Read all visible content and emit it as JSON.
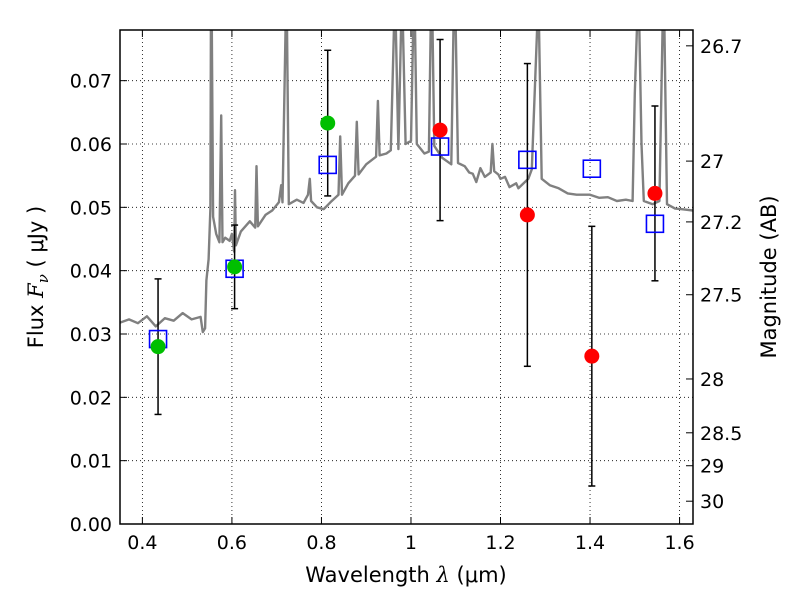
{
  "chart_data": {
    "type": "scatter",
    "title": "",
    "xlabel": "Wavelength",
    "xlabel_symbol": "λ",
    "xlabel_unit": "(μm)",
    "ylabel": "Flux",
    "ylabel_symbol": "F",
    "ylabel_subscript": "ν",
    "ylabel_unit": "( μJy )",
    "y2label": "Magnitude (AB)",
    "xlim": [
      0.35,
      1.63
    ],
    "ylim": [
      0.0,
      0.078
    ],
    "grid": true,
    "grid_style": "dotted",
    "legend": "none",
    "x_ticks": [
      0.4,
      0.6,
      0.8,
      1.0,
      1.2,
      1.4,
      1.6
    ],
    "x_tick_labels": [
      "0.4",
      "0.6",
      "0.8",
      "1",
      "1.2",
      "1.4",
      "1.6"
    ],
    "y_ticks": [
      0.0,
      0.01,
      0.02,
      0.03,
      0.04,
      0.05,
      0.06,
      0.07
    ],
    "y_tick_labels": [
      "0.00",
      "0.01",
      "0.02",
      "0.03",
      "0.04",
      "0.05",
      "0.06",
      "0.07"
    ],
    "y2_ticks": [
      {
        "label": "26.7",
        "flux": 0.0755
      },
      {
        "label": "27",
        "flux": 0.0573
      },
      {
        "label": "27.2",
        "flux": 0.0477
      },
      {
        "label": "27.5",
        "flux": 0.0362
      },
      {
        "label": "28",
        "flux": 0.0229
      },
      {
        "label": "28.5",
        "flux": 0.0144
      },
      {
        "label": "29",
        "flux": 0.0092
      },
      {
        "label": "30",
        "flux": 0.0036
      }
    ],
    "series": [
      {
        "kind": "model_spectrum_line",
        "color": "#808080",
        "points": [
          [
            0.35,
            0.0318
          ],
          [
            0.37,
            0.0323
          ],
          [
            0.39,
            0.0317
          ],
          [
            0.41,
            0.0328
          ],
          [
            0.43,
            0.0312
          ],
          [
            0.45,
            0.0325
          ],
          [
            0.47,
            0.0321
          ],
          [
            0.49,
            0.0333
          ],
          [
            0.51,
            0.0323
          ],
          [
            0.53,
            0.0327
          ],
          [
            0.535,
            0.0303
          ],
          [
            0.54,
            0.0309
          ],
          [
            0.543,
            0.0385
          ],
          [
            0.548,
            0.0418
          ],
          [
            0.552,
            0.0498
          ],
          [
            0.553,
            0.0785
          ],
          [
            0.555,
            0.0785
          ],
          [
            0.558,
            0.0485
          ],
          [
            0.565,
            0.0458
          ],
          [
            0.572,
            0.0445
          ],
          [
            0.576,
            0.0645
          ],
          [
            0.579,
            0.0445
          ],
          [
            0.585,
            0.0452
          ],
          [
            0.595,
            0.0447
          ],
          [
            0.6,
            0.0458
          ],
          [
            0.605,
            0.043
          ],
          [
            0.607,
            0.0527
          ],
          [
            0.609,
            0.044
          ],
          [
            0.62,
            0.0462
          ],
          [
            0.64,
            0.0478
          ],
          [
            0.652,
            0.0468
          ],
          [
            0.655,
            0.0565
          ],
          [
            0.658,
            0.047
          ],
          [
            0.675,
            0.0488
          ],
          [
            0.69,
            0.0495
          ],
          [
            0.705,
            0.0508
          ],
          [
            0.71,
            0.0535
          ],
          [
            0.713,
            0.0508
          ],
          [
            0.72,
            0.0785
          ],
          [
            0.723,
            0.0785
          ],
          [
            0.727,
            0.0505
          ],
          [
            0.745,
            0.0512
          ],
          [
            0.76,
            0.0507
          ],
          [
            0.77,
            0.052
          ],
          [
            0.774,
            0.0545
          ],
          [
            0.777,
            0.051
          ],
          [
            0.79,
            0.05
          ],
          [
            0.805,
            0.0497
          ],
          [
            0.82,
            0.0508
          ],
          [
            0.838,
            0.052
          ],
          [
            0.842,
            0.0612
          ],
          [
            0.846,
            0.052
          ],
          [
            0.86,
            0.0538
          ],
          [
            0.875,
            0.055
          ],
          [
            0.879,
            0.0635
          ],
          [
            0.883,
            0.0552
          ],
          [
            0.9,
            0.0568
          ],
          [
            0.922,
            0.058
          ],
          [
            0.926,
            0.0668
          ],
          [
            0.93,
            0.0582
          ],
          [
            0.945,
            0.0585
          ],
          [
            0.955,
            0.059
          ],
          [
            0.962,
            0.0785
          ],
          [
            0.966,
            0.0785
          ],
          [
            0.972,
            0.0592
          ],
          [
            0.978,
            0.0785
          ],
          [
            0.982,
            0.0785
          ],
          [
            0.988,
            0.06
          ],
          [
            1.0,
            0.0605
          ],
          [
            1.005,
            0.0785
          ],
          [
            1.009,
            0.0785
          ],
          [
            1.013,
            0.06
          ],
          [
            1.03,
            0.0585
          ],
          [
            1.04,
            0.0588
          ],
          [
            1.044,
            0.0785
          ],
          [
            1.048,
            0.0785
          ],
          [
            1.052,
            0.0597
          ],
          [
            1.07,
            0.0578
          ],
          [
            1.09,
            0.0568
          ],
          [
            1.095,
            0.0785
          ],
          [
            1.1,
            0.0785
          ],
          [
            1.105,
            0.057
          ],
          [
            1.12,
            0.0565
          ],
          [
            1.13,
            0.0555
          ],
          [
            1.138,
            0.0553
          ],
          [
            1.146,
            0.054
          ],
          [
            1.155,
            0.0562
          ],
          [
            1.165,
            0.0548
          ],
          [
            1.178,
            0.0555
          ],
          [
            1.182,
            0.06
          ],
          [
            1.186,
            0.0557
          ],
          [
            1.195,
            0.0552
          ],
          [
            1.2,
            0.0545
          ],
          [
            1.21,
            0.0548
          ],
          [
            1.22,
            0.0532
          ],
          [
            1.235,
            0.0538
          ],
          [
            1.24,
            0.053
          ],
          [
            1.262,
            0.0545
          ],
          [
            1.27,
            0.056
          ],
          [
            1.282,
            0.0785
          ],
          [
            1.286,
            0.0785
          ],
          [
            1.292,
            0.0545
          ],
          [
            1.31,
            0.0535
          ],
          [
            1.33,
            0.053
          ],
          [
            1.35,
            0.0522
          ],
          [
            1.37,
            0.052
          ],
          [
            1.4,
            0.052
          ],
          [
            1.42,
            0.0515
          ],
          [
            1.44,
            0.0516
          ],
          [
            1.46,
            0.051
          ],
          [
            1.48,
            0.0512
          ],
          [
            1.495,
            0.051
          ],
          [
            1.5,
            0.068
          ],
          [
            1.505,
            0.0785
          ],
          [
            1.51,
            0.0785
          ],
          [
            1.515,
            0.06
          ],
          [
            1.52,
            0.051
          ],
          [
            1.54,
            0.0505
          ],
          [
            1.555,
            0.051
          ],
          [
            1.562,
            0.0785
          ],
          [
            1.566,
            0.0785
          ],
          [
            1.572,
            0.0505
          ],
          [
            1.59,
            0.0498
          ],
          [
            1.605,
            0.0497
          ],
          [
            1.63,
            0.0495
          ]
        ]
      },
      {
        "kind": "observed_with_errorbars",
        "marker": "circle",
        "points": [
          {
            "x": 0.435,
            "y": 0.028,
            "err": 0.0107,
            "color": "#00bf00"
          },
          {
            "x": 0.606,
            "y": 0.0406,
            "err": 0.0066,
            "color": "#00bf00"
          },
          {
            "x": 0.814,
            "y": 0.0633,
            "err": 0.0115,
            "color": "#00bf00"
          },
          {
            "x": 1.065,
            "y": 0.0622,
            "err": 0.0143,
            "color": "#ff0000"
          },
          {
            "x": 1.26,
            "y": 0.0488,
            "err": 0.0239,
            "color": "#ff0000"
          },
          {
            "x": 1.404,
            "y": 0.0265,
            "err": 0.0205,
            "color": "#ff0000"
          },
          {
            "x": 1.545,
            "y": 0.0522,
            "err": 0.0138,
            "color": "#ff0000"
          }
        ]
      },
      {
        "kind": "model_photometry",
        "marker": "open-square",
        "color": "#0000ff",
        "points": [
          [
            0.435,
            0.0292
          ],
          [
            0.606,
            0.0403
          ],
          [
            0.814,
            0.0567
          ],
          [
            1.065,
            0.0596
          ],
          [
            1.26,
            0.0575
          ],
          [
            1.404,
            0.0561
          ],
          [
            1.545,
            0.0474
          ]
        ]
      }
    ]
  }
}
